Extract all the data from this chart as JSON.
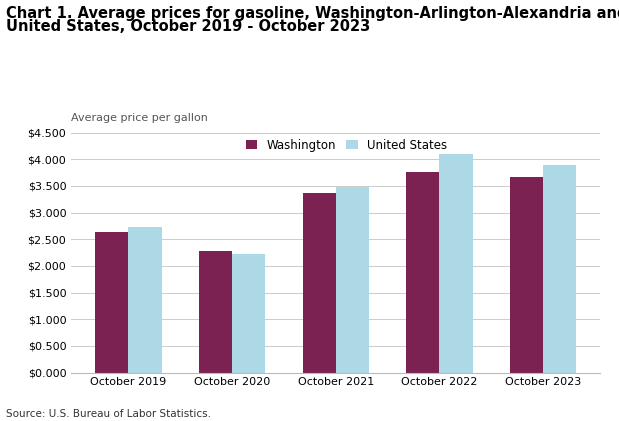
{
  "title_line1": "Chart 1. Average prices for gasoline, Washington-Arlington-Alexandria and",
  "title_line2": "United States, October 2019 - October 2023",
  "ylabel": "Average price per gallon",
  "source": "Source: U.S. Bureau of Labor Statistics.",
  "categories": [
    "October 2019",
    "October 2020",
    "October 2021",
    "October 2022",
    "October 2023"
  ],
  "washington": [
    2.637,
    2.273,
    3.362,
    3.762,
    3.662
  ],
  "united_states": [
    2.727,
    2.218,
    3.48,
    4.107,
    3.893
  ],
  "washington_color": "#7B2252",
  "us_color": "#ADD8E6",
  "ylim": [
    0,
    4.5
  ],
  "yticks": [
    0.0,
    0.5,
    1.0,
    1.5,
    2.0,
    2.5,
    3.0,
    3.5,
    4.0,
    4.5
  ],
  "legend_labels": [
    "Washington",
    "United States"
  ],
  "title_fontsize": 10.5,
  "axis_label_fontsize": 8,
  "tick_fontsize": 8,
  "legend_fontsize": 8.5,
  "source_fontsize": 7.5,
  "bar_width": 0.32
}
